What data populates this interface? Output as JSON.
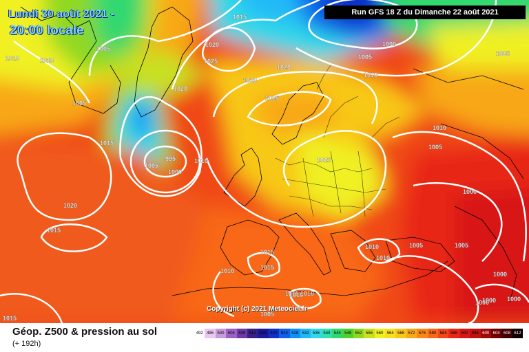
{
  "header": {
    "date_line": "Lundi 30 août 2021 -",
    "time_line": "20:00 locale",
    "run_info": "Run GFS 18 Z du Dimanche 22 août 2021"
  },
  "footer": {
    "caption": "Géop. Z500 & pression au sol",
    "horizon": "(+ 192h)",
    "copyright": "Copyright (c) 2021 Meteociel.fr"
  },
  "legend": {
    "values": [
      "492",
      "496",
      "500",
      "504",
      "508",
      "512",
      "516",
      "520",
      "524",
      "528",
      "532",
      "536",
      "540",
      "544",
      "548",
      "552",
      "556",
      "560",
      "564",
      "568",
      "572",
      "576",
      "580",
      "584",
      "588",
      "592",
      "596",
      "600",
      "604",
      "608",
      "612"
    ],
    "colors": [
      "#ffffff",
      "#e8c8f0",
      "#c89adc",
      "#9b62c4",
      "#6e3aa8",
      "#3b2088",
      "#1a1a9a",
      "#1030c8",
      "#1060e8",
      "#1090f8",
      "#20b8f8",
      "#30d8e8",
      "#30e0b0",
      "#30d870",
      "#50d030",
      "#90d820",
      "#c8e020",
      "#f0f020",
      "#f8e020",
      "#f8c818",
      "#f8a818",
      "#f88818",
      "#f86818",
      "#f04818",
      "#e82818",
      "#d81818",
      "#c01010",
      "#a00808",
      "#700000",
      "#400000",
      "#100000"
    ]
  },
  "isobars": [
    {
      "label": "1015",
      "pos": "top-center"
    },
    {
      "label": "1010",
      "pos": "top-left"
    },
    {
      "label": "1010",
      "pos": "north-atlantic"
    },
    {
      "label": "1005",
      "pos": "north-atlantic"
    },
    {
      "label": "1020",
      "pos": "greenland"
    },
    {
      "label": "1025",
      "pos": "greenland"
    },
    {
      "label": "1020",
      "pos": "greenland"
    },
    {
      "label": "1020",
      "pos": "north-sea"
    },
    {
      "label": "1020",
      "pos": "norway"
    },
    {
      "label": "1025",
      "pos": "scandinavia"
    },
    {
      "label": "1005",
      "pos": "west-atlantic"
    },
    {
      "label": "1015",
      "pos": "atlantic"
    },
    {
      "label": "995",
      "pos": "low-center"
    },
    {
      "label": "1005",
      "pos": "low-west"
    },
    {
      "label": "1000",
      "pos": "low-south"
    },
    {
      "label": "1010",
      "pos": "low-east"
    },
    {
      "label": "1020",
      "pos": "mid-atlantic"
    },
    {
      "label": "1015",
      "pos": "south-atlantic"
    },
    {
      "label": "1015",
      "pos": "central-europe"
    },
    {
      "label": "1005",
      "pos": "north-russia"
    },
    {
      "label": "1010",
      "pos": "north-russia"
    },
    {
      "label": "1000",
      "pos": "north-russia"
    },
    {
      "label": "1005",
      "pos": "east-edge"
    },
    {
      "label": "1010",
      "pos": "east-russia"
    },
    {
      "label": "1005",
      "pos": "east-russia"
    },
    {
      "label": "1000",
      "pos": "caspian"
    },
    {
      "label": "1010",
      "pos": "balkans"
    },
    {
      "label": "1010",
      "pos": "balkans"
    },
    {
      "label": "1005",
      "pos": "turkey"
    },
    {
      "label": "1005",
      "pos": "middle-east"
    },
    {
      "label": "1000",
      "pos": "arabia"
    },
    {
      "label": "1000",
      "pos": "arabia-south"
    },
    {
      "label": "1000",
      "pos": "arabia-south"
    },
    {
      "label": "1000",
      "pos": "arabia-south"
    },
    {
      "label": "1015",
      "pos": "iberia"
    },
    {
      "label": "1015",
      "pos": "iberia"
    },
    {
      "label": "1010",
      "pos": "portugal"
    },
    {
      "label": "1015",
      "pos": "sahara"
    },
    {
      "label": "1010",
      "pos": "algeria"
    },
    {
      "label": "1010",
      "pos": "algeria"
    },
    {
      "label": "1005",
      "pos": "sahara"
    },
    {
      "label": "1015",
      "pos": "bottom-left"
    }
  ]
}
